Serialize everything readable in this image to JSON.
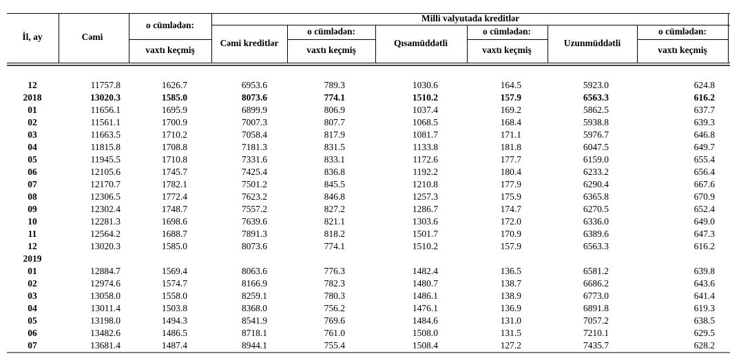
{
  "header": {
    "year_month": "İl, ay",
    "total": "Cəmi",
    "including": [
      "o cümlədən:",
      "o cümlədən:",
      "o cümlədən:",
      "o cümlədən:"
    ],
    "overdue": [
      "vaxtı keçmiş",
      "vaxtı keçmiş",
      "vaxtı keçmiş",
      "vaxtı keçmiş"
    ],
    "national_currency": "Milli valyutada  kreditlər",
    "total_credits": "Cəmi kreditlər",
    "short_term": "Qısamüddətli",
    "long_term": "Uzunmüddətli"
  },
  "table": {
    "rows": [
      [
        "12",
        "11757.8",
        "1626.7",
        "6953.6",
        "789.3",
        "1030.6",
        "164.5",
        "5923.0",
        "624.8"
      ],
      [
        "2018",
        "13020.3",
        "1585.0",
        "8073.6",
        "774.1",
        "1510.2",
        "157.9",
        "6563.3",
        "616.2"
      ],
      [
        "01",
        "11656.1",
        "1695.9",
        "6899.9",
        "806.9",
        "1037.4",
        "169.2",
        "5862.5",
        "637.7"
      ],
      [
        "02",
        "11561.1",
        "1700.9",
        "7007.3",
        "807.7",
        "1068.5",
        "168.4",
        "5938.8",
        "639.3"
      ],
      [
        "03",
        "11663.5",
        "1710.2",
        "7058.4",
        "817.9",
        "1081.7",
        "171.1",
        "5976.7",
        "646.8"
      ],
      [
        "04",
        "11815.8",
        "1708.8",
        "7181.3",
        "831.5",
        "1133.8",
        "181.8",
        "6047.5",
        "649.7"
      ],
      [
        "05",
        "11945.5",
        "1710.8",
        "7331.6",
        "833.1",
        "1172.6",
        "177.7",
        "6159.0",
        "655.4"
      ],
      [
        "06",
        "12105.6",
        "1745.7",
        "7425.4",
        "836.8",
        "1192.2",
        "180.4",
        "6233.2",
        "656.4"
      ],
      [
        "07",
        "12170.7",
        "1782.1",
        "7501.2",
        "845.5",
        "1210.8",
        "177.9",
        "6290.4",
        "667.6"
      ],
      [
        "08",
        "12306.5",
        "1772.4",
        "7623.2",
        "846.8",
        "1257.3",
        "175.9",
        "6365.8",
        "670.9"
      ],
      [
        "09",
        "12302.4",
        "1748.7",
        "7557.2",
        "827.2",
        "1286.7",
        "174.7",
        "6270.5",
        "652.4"
      ],
      [
        "10",
        "12281.3",
        "1698.6",
        "7639.6",
        "821.1",
        "1303.6",
        "172.0",
        "6336.0",
        "649.0"
      ],
      [
        "11",
        "12564.2",
        "1688.7",
        "7891.3",
        "818.2",
        "1501.7",
        "170.9",
        "6389.6",
        "647.3"
      ],
      [
        "12",
        "13020.3",
        "1585.0",
        "8073.6",
        "774.1",
        "1510.2",
        "157.9",
        "6563.3",
        "616.2"
      ],
      [
        "2019"
      ],
      [
        "01",
        "12884.7",
        "1569.4",
        "8063.6",
        "776.3",
        "1482.4",
        "136.5",
        "6581.2",
        "639.8"
      ],
      [
        "02",
        "12974.6",
        "1574.7",
        "8166.9",
        "782.3",
        "1480.7",
        "138.7",
        "6686.2",
        "643.6"
      ],
      [
        "03",
        "13058.0",
        "1558.0",
        "8259.1",
        "780.3",
        "1486.1",
        "138.9",
        "6773.0",
        "641.4"
      ],
      [
        "04",
        "13011.4",
        "1503.8",
        "8368.0",
        "756.2",
        "1476.1",
        "136.9",
        "6891.8",
        "619.3"
      ],
      [
        "05",
        "13198.0",
        "1494.3",
        "8541.9",
        "769.6",
        "1484.6",
        "131.0",
        "7057.2",
        "638.5"
      ],
      [
        "06",
        "13482.6",
        "1486.5",
        "8718.1",
        "761.0",
        "1508.0",
        "131.5",
        "7210.1",
        "629.5"
      ],
      [
        "07",
        "13681.4",
        "1487.4",
        "8944.1",
        "755.4",
        "1508.4",
        "127.2",
        "7435.7",
        "628.2"
      ]
    ]
  }
}
